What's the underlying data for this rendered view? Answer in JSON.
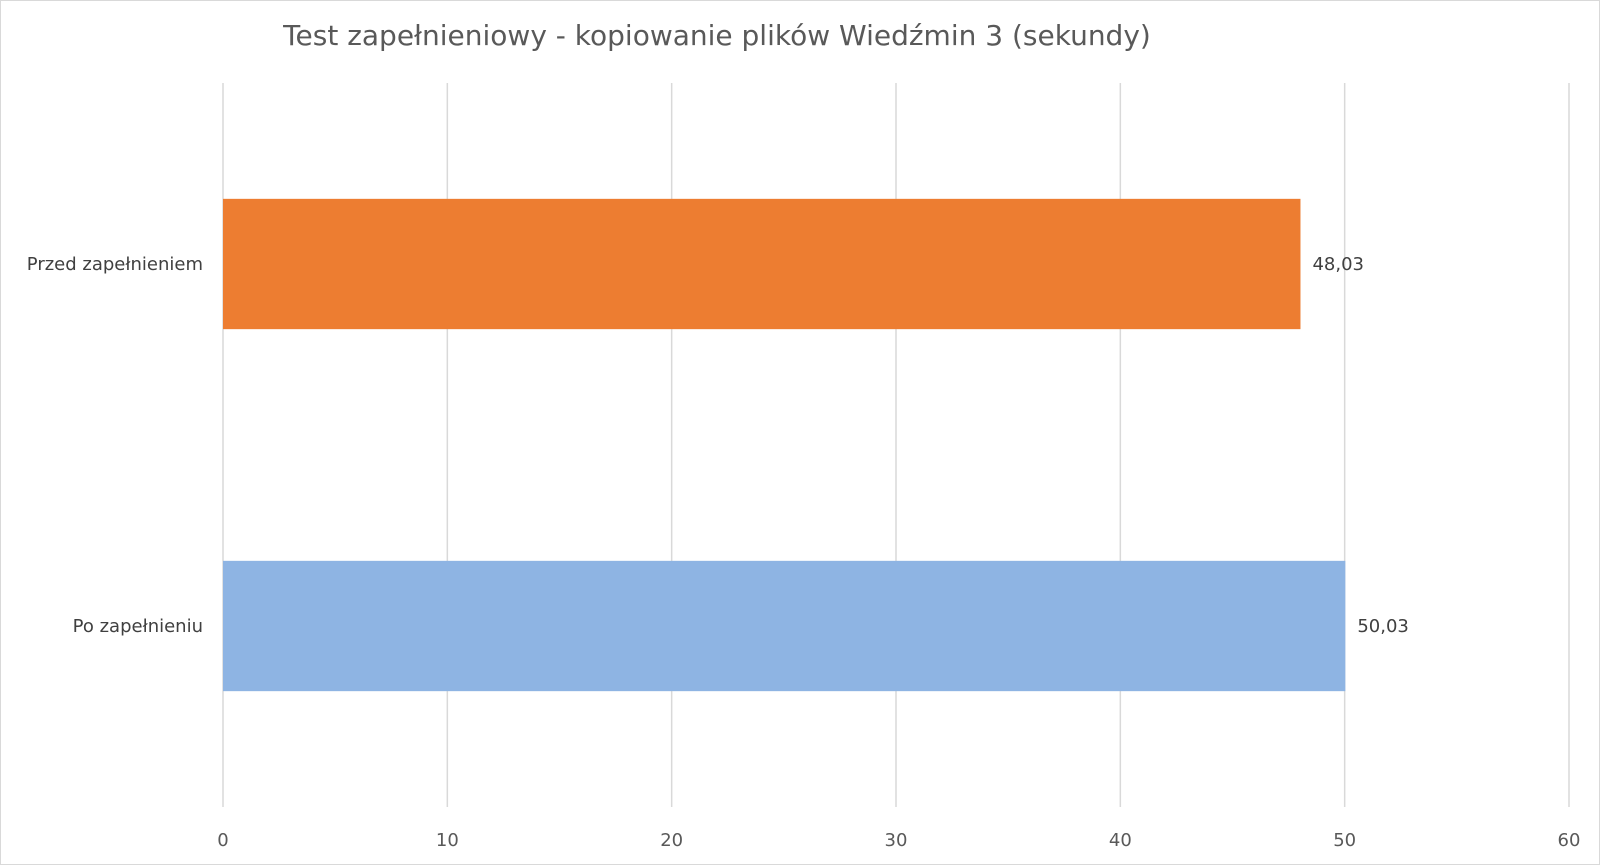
{
  "chart_data": {
    "type": "bar",
    "orientation": "horizontal",
    "title": "Test zapełnieniowy - kopiowanie plików Wiedźmin 3 (sekundy)",
    "xlabel": "",
    "ylabel": "",
    "categories": [
      "Przed zapełnieniem",
      "Po zapełnieniu"
    ],
    "values": [
      48.03,
      50.03
    ],
    "value_labels": [
      "48,03",
      "50,03"
    ],
    "bar_colors": [
      "#ED7D31",
      "#8EB4E3"
    ],
    "xlim": [
      0,
      60
    ],
    "x_ticks": [
      0,
      10,
      20,
      30,
      40,
      50,
      60
    ],
    "x_tick_labels": [
      "0",
      "10",
      "20",
      "30",
      "40",
      "50",
      "60"
    ],
    "grid": true,
    "gridline_color": "#d9d9d9",
    "legend": "none"
  }
}
